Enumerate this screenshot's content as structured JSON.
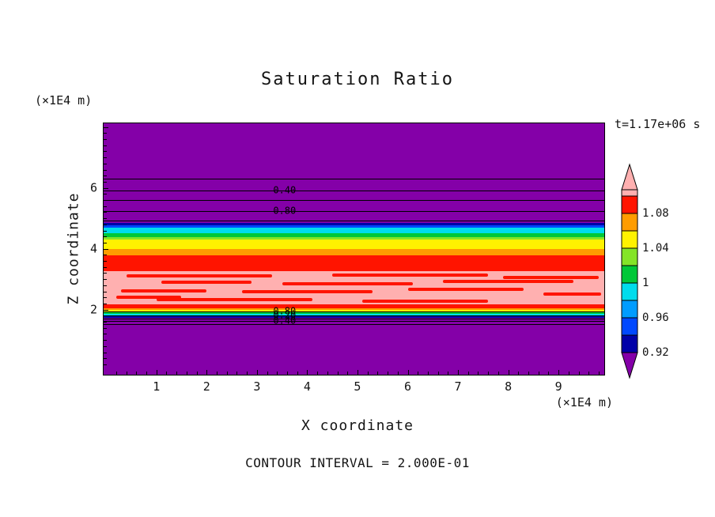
{
  "title": "Saturation Ratio",
  "annotations": {
    "time": "t=1.17e+06 s",
    "contour_interval": "CONTOUR INTERVAL = 2.000E-01"
  },
  "axes": {
    "x": {
      "label": "X coordinate",
      "unit": "(×1E4 m)",
      "ticks": [
        1,
        2,
        3,
        4,
        5,
        6,
        7,
        8,
        9
      ]
    },
    "z": {
      "label": "Z coordinate",
      "unit": "(×1E4 m)",
      "ticks": [
        2,
        4,
        6
      ]
    }
  },
  "palette": {
    "purple": "#8400A8",
    "navy": "#0000A8",
    "blue": "#0048FF",
    "lightblue": "#009CFF",
    "cyan": "#00DCEC",
    "green": "#00C838",
    "lime": "#84E428",
    "yellow": "#FFF200",
    "orange": "#FF9C00",
    "red": "#FF1400",
    "pink": "#FFB0B0",
    "line": "#000000"
  },
  "chart_data": {
    "type": "heatmap",
    "title": "Saturation Ratio",
    "xlabel": "X coordinate (×1E4 m)",
    "ylabel": "Z coordinate (×1E4 m)",
    "xlim": [
      -0.05,
      9.91
    ],
    "zlim": [
      -0.14,
      8.12
    ],
    "time_label": "t=1.17e+06 s",
    "contour_interval": 0.2,
    "bands": [
      {
        "color": "purple",
        "z_top": 8.12,
        "z_bottom": 4.86
      },
      {
        "color": "navy",
        "z_top": 4.86,
        "z_bottom": 4.78
      },
      {
        "color": "blue",
        "z_top": 4.78,
        "z_bottom": 4.7
      },
      {
        "color": "cyan",
        "z_top": 4.7,
        "z_bottom": 4.52
      },
      {
        "color": "green",
        "z_top": 4.52,
        "z_bottom": 4.38
      },
      {
        "color": "lime",
        "z_top": 4.38,
        "z_bottom": 4.29
      },
      {
        "color": "yellow",
        "z_top": 4.29,
        "z_bottom": 3.99
      },
      {
        "color": "orange",
        "z_top": 3.99,
        "z_bottom": 3.78
      },
      {
        "color": "red",
        "z_top": 3.78,
        "z_bottom": 3.26
      },
      {
        "color": "pink",
        "z_top": 3.26,
        "z_bottom": 2.16
      },
      {
        "color": "red",
        "z_top": 2.16,
        "z_bottom": 2.03
      },
      {
        "color": "orange",
        "z_top": 2.03,
        "z_bottom": 1.98
      },
      {
        "color": "yellow",
        "z_top": 1.98,
        "z_bottom": 1.93
      },
      {
        "color": "lime",
        "z_top": 1.93,
        "z_bottom": 1.9
      },
      {
        "color": "green",
        "z_top": 1.9,
        "z_bottom": 1.87
      },
      {
        "color": "cyan",
        "z_top": 1.87,
        "z_bottom": 1.82
      },
      {
        "color": "blue",
        "z_top": 1.82,
        "z_bottom": 1.77
      },
      {
        "color": "navy",
        "z_top": 1.77,
        "z_bottom": 1.72
      },
      {
        "color": "purple",
        "z_top": 1.72,
        "z_bottom": -0.14
      }
    ],
    "contour_lines": [
      {
        "z": 6.31
      },
      {
        "z": 5.92,
        "label": "0.40",
        "label_x": 3.55
      },
      {
        "z": 5.59
      },
      {
        "z": 5.23,
        "label": "0.80",
        "label_x": 3.55
      },
      {
        "z": 4.92
      },
      {
        "z": 1.95,
        "label": "0.80",
        "label_x": 3.55
      },
      {
        "z": 1.8,
        "label": "0.20",
        "label_x": 3.55
      },
      {
        "z": 1.7
      },
      {
        "z": 1.62,
        "label": "0.40",
        "label_x": 3.55
      },
      {
        "z": 1.52
      }
    ],
    "red_streaks": [
      {
        "x_from": 0.4,
        "x_to": 3.3,
        "z": 3.1
      },
      {
        "x_from": 4.5,
        "x_to": 7.6,
        "z": 3.14
      },
      {
        "x_from": 7.9,
        "x_to": 9.8,
        "z": 3.05
      },
      {
        "x_from": 1.1,
        "x_to": 2.9,
        "z": 2.9
      },
      {
        "x_from": 3.5,
        "x_to": 6.1,
        "z": 2.85
      },
      {
        "x_from": 6.7,
        "x_to": 9.3,
        "z": 2.93
      },
      {
        "x_from": 0.3,
        "x_to": 2.0,
        "z": 2.62
      },
      {
        "x_from": 2.7,
        "x_to": 5.3,
        "z": 2.58
      },
      {
        "x_from": 6.0,
        "x_to": 8.3,
        "z": 2.66
      },
      {
        "x_from": 8.7,
        "x_to": 9.85,
        "z": 2.52
      },
      {
        "x_from": 1.0,
        "x_to": 4.1,
        "z": 2.33
      },
      {
        "x_from": 5.1,
        "x_to": 7.6,
        "z": 2.28
      },
      {
        "x_from": 0.2,
        "x_to": 1.5,
        "z": 2.4
      }
    ],
    "colorbar": {
      "tick_labels": [
        "1.08",
        "1.04",
        "1",
        "0.96",
        "0.92"
      ],
      "segments_top_to_bottom": [
        "pink",
        "red",
        "orange",
        "yellow",
        "lime",
        "green",
        "cyan",
        "lightblue",
        "blue",
        "navy"
      ],
      "arrow_top": "pink",
      "arrow_bottom": "purple"
    }
  }
}
